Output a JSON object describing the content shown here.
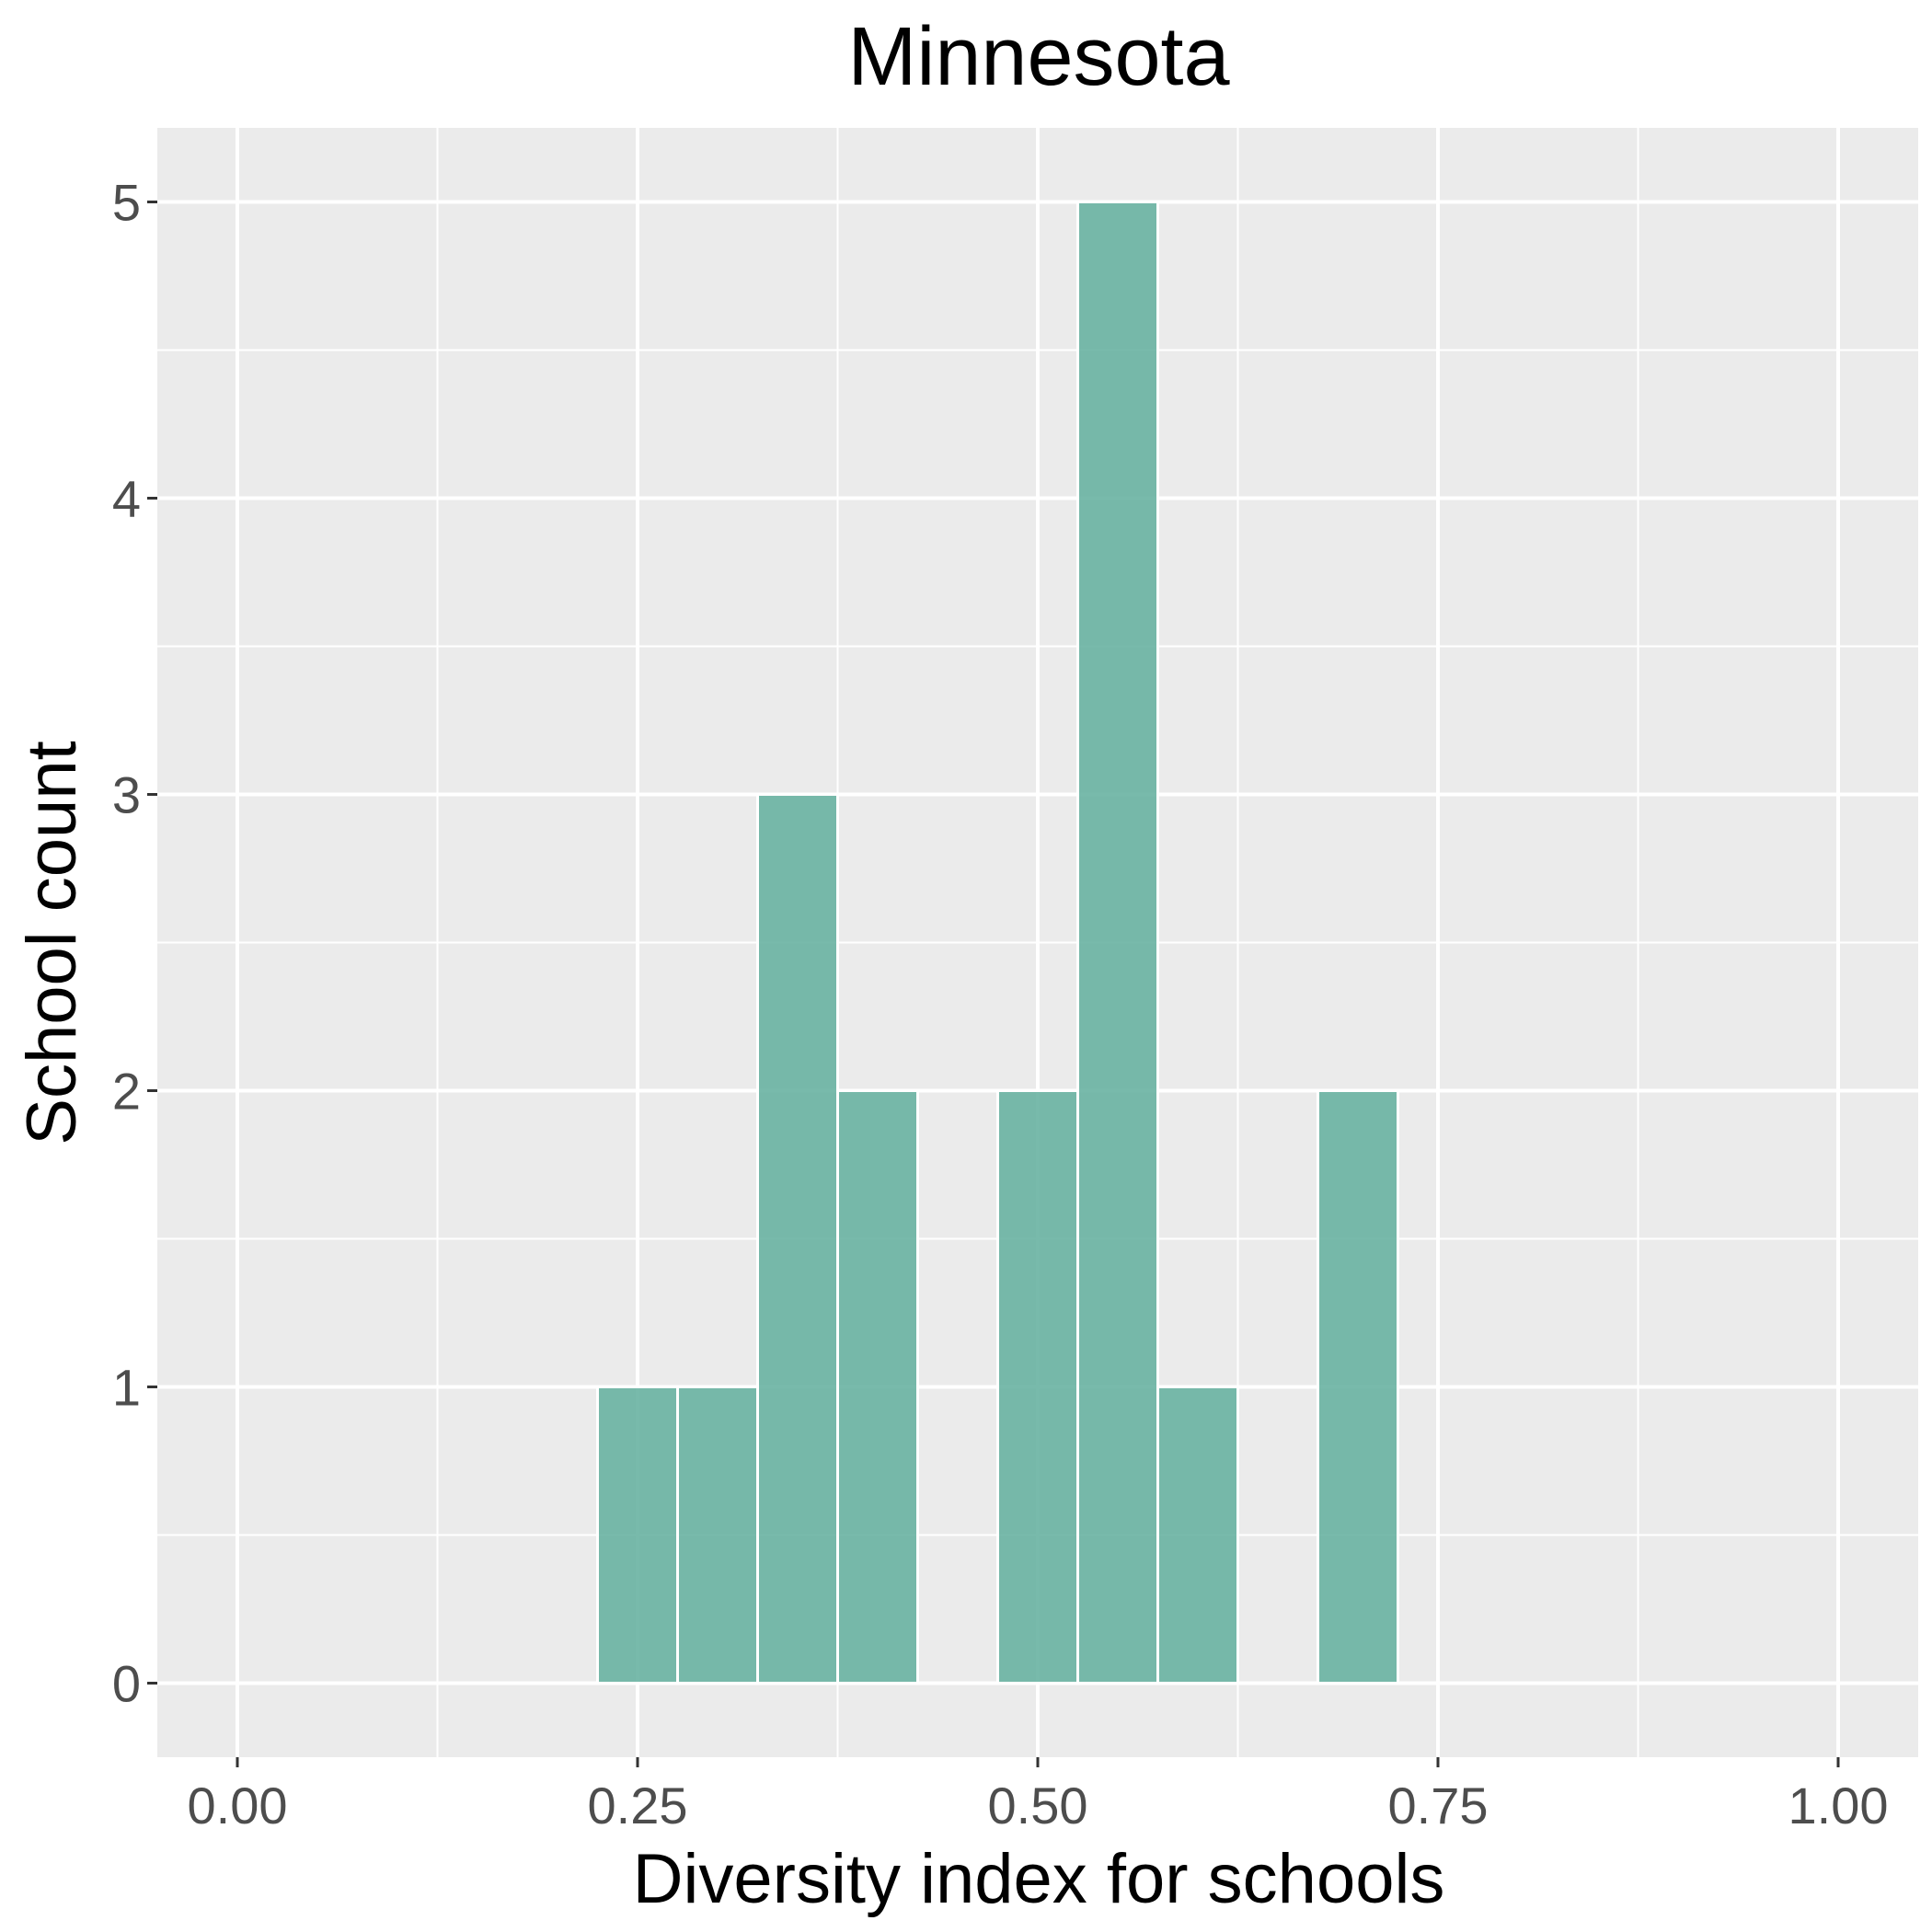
{
  "chart_data": {
    "type": "bar",
    "title": "Minnesota",
    "xlabel": "Diversity index for schools",
    "ylabel": "School count",
    "xlim": [
      -0.05,
      1.05
    ],
    "ylim": [
      -0.25,
      5.25
    ],
    "x_ticks": [
      0.0,
      0.25,
      0.5,
      0.75,
      1.0
    ],
    "x_tick_labels": [
      "0.00",
      "0.25",
      "0.50",
      "0.75",
      "1.00"
    ],
    "y_ticks": [
      0,
      1,
      2,
      3,
      4,
      5
    ],
    "y_tick_labels": [
      "0",
      "1",
      "2",
      "3",
      "4",
      "5"
    ],
    "bin_width": 0.05,
    "bins": [
      {
        "center": 0.05,
        "count": 0
      },
      {
        "center": 0.1,
        "count": 0
      },
      {
        "center": 0.15,
        "count": 0
      },
      {
        "center": 0.2,
        "count": 0
      },
      {
        "center": 0.25,
        "count": 1
      },
      {
        "center": 0.3,
        "count": 1
      },
      {
        "center": 0.35,
        "count": 3
      },
      {
        "center": 0.4,
        "count": 2
      },
      {
        "center": 0.45,
        "count": 0
      },
      {
        "center": 0.5,
        "count": 2
      },
      {
        "center": 0.55,
        "count": 5
      },
      {
        "center": 0.6,
        "count": 1
      },
      {
        "center": 0.65,
        "count": 0
      },
      {
        "center": 0.7,
        "count": 2
      },
      {
        "center": 0.75,
        "count": 0
      },
      {
        "center": 0.8,
        "count": 0
      },
      {
        "center": 0.85,
        "count": 0
      },
      {
        "center": 0.9,
        "count": 0
      },
      {
        "center": 0.95,
        "count": 0
      }
    ],
    "bar_color": "#69B3A2",
    "panel_background": "#EBEBEB",
    "grid": true,
    "grid_color": "#FFFFFF",
    "legend": "none"
  }
}
